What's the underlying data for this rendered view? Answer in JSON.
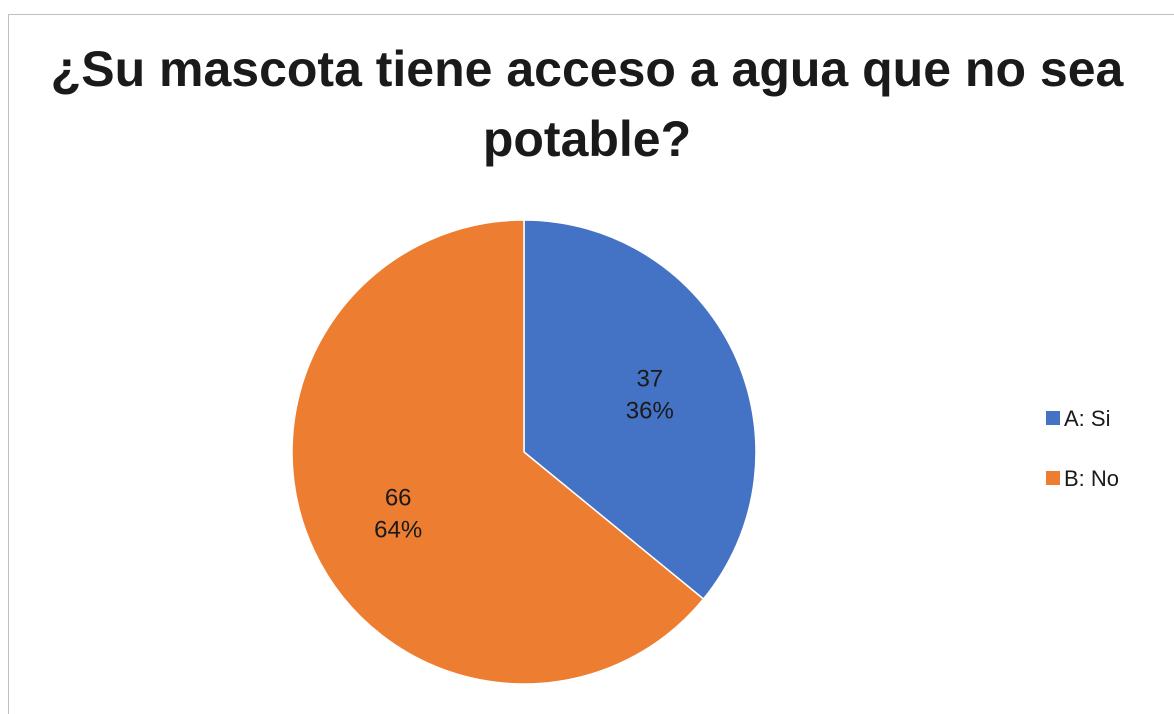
{
  "chart_data": {
    "type": "pie",
    "title": "¿Su mascota tiene acceso a agua que no sea potable?",
    "categories": [
      "A: Si",
      "B: No"
    ],
    "values": [
      37,
      66
    ],
    "percent_labels": [
      "36%",
      "64%"
    ],
    "colors": [
      "#4472C4",
      "#ED7D31"
    ],
    "legend_position": "right",
    "start_angle": "12 o'clock, clockwise"
  }
}
